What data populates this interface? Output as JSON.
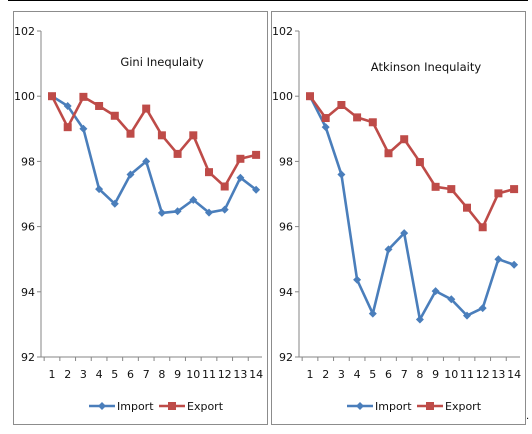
{
  "colors": {
    "import": "#4a7ebb",
    "export": "#be4b48"
  },
  "legend": {
    "import": "Import",
    "export": "Export"
  },
  "stray_mark": ".",
  "chart_data": [
    {
      "type": "line",
      "title": "Gini Inequlaity",
      "xlabel": "",
      "ylabel": "",
      "categories": [
        "1",
        "2",
        "3",
        "4",
        "5",
        "6",
        "7",
        "8",
        "9",
        "10",
        "11",
        "12",
        "13",
        "14"
      ],
      "ylim": [
        92,
        102
      ],
      "yticks": [
        "92",
        "94",
        "96",
        "98",
        "100",
        "102"
      ],
      "grid": false,
      "legend_position": "bottom",
      "series": [
        {
          "name": "Import",
          "marker": "diamond",
          "values": [
            100,
            99.7,
            99.0,
            97.15,
            96.7,
            97.6,
            98.0,
            96.42,
            96.47,
            96.82,
            96.43,
            96.52,
            97.5,
            97.13
          ]
        },
        {
          "name": "Export",
          "marker": "square",
          "values": [
            100,
            99.05,
            99.98,
            99.7,
            99.4,
            98.85,
            99.62,
            98.8,
            98.23,
            98.8,
            97.67,
            97.23,
            98.08,
            98.2
          ]
        }
      ]
    },
    {
      "type": "line",
      "title": "Atkinson Inequlaity",
      "xlabel": "",
      "ylabel": "",
      "categories": [
        "1",
        "2",
        "3",
        "4",
        "5",
        "6",
        "7",
        "8",
        "9",
        "10",
        "11",
        "12",
        "13",
        "14"
      ],
      "ylim": [
        92,
        102
      ],
      "yticks": [
        "92",
        "94",
        "96",
        "98",
        "100",
        "102"
      ],
      "grid": false,
      "legend_position": "bottom",
      "series": [
        {
          "name": "Import",
          "marker": "diamond",
          "values": [
            100,
            99.05,
            97.6,
            94.37,
            93.33,
            95.3,
            95.8,
            93.15,
            94.02,
            93.77,
            93.27,
            93.5,
            95.0,
            94.83
          ]
        },
        {
          "name": "Export",
          "marker": "square",
          "values": [
            100,
            99.33,
            99.73,
            99.35,
            99.2,
            98.25,
            98.68,
            97.98,
            97.22,
            97.15,
            96.58,
            95.98,
            97.02,
            97.15
          ]
        }
      ]
    }
  ]
}
